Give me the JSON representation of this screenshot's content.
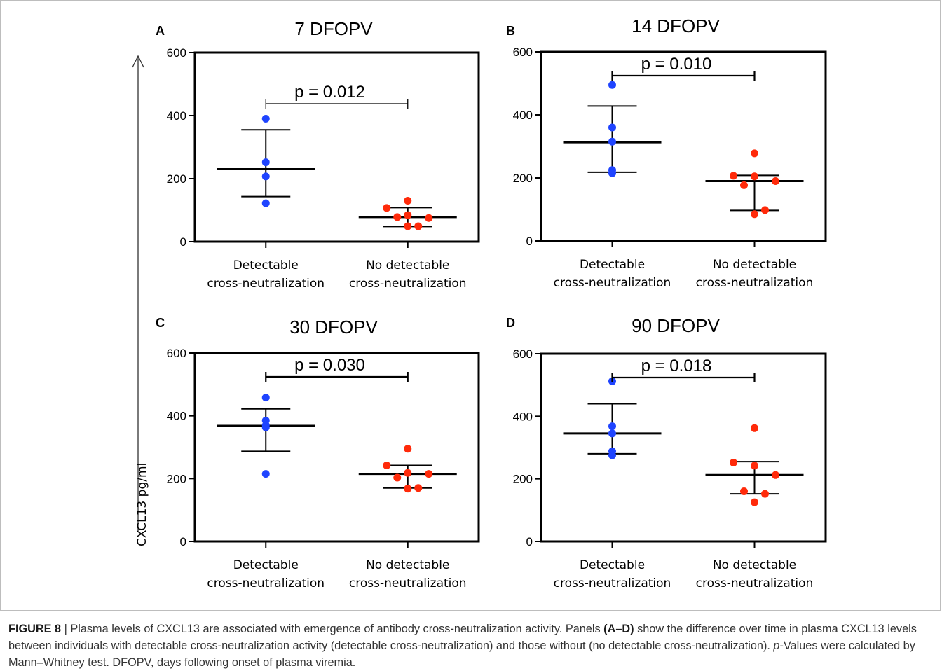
{
  "figure": {
    "y_axis_label": "CXCL13 pg/ml",
    "caption": {
      "fig_label": "FIGURE 8",
      "sep": " | ",
      "part1": "Plasma levels of CXCL13 are associated with emergence of antibody cross-neutralization activity. Panels ",
      "panels_ref": "(A–D)",
      "part2": " show the difference over time in plasma CXCL13 levels between individuals with detectable cross-neutralization activity (detectable cross-neutralization) and those without (no detectable cross-neutralization). ",
      "p_italic": "p",
      "part3": "-Values were calculated by Mann–Whitney test. DFOPV, days following onset of plasma viremia."
    }
  },
  "colors": {
    "group1": "#1f44ff",
    "group2": "#ff2a0a",
    "axis": "#000000"
  },
  "chart_data": [
    {
      "type": "scatter",
      "panel": "A",
      "title": "7 DFOPV",
      "categories": [
        "Detectable\ncross-neutralization",
        "No detectable\ncross-neutralization"
      ],
      "ylim": [
        0,
        600
      ],
      "yticks": [
        0,
        200,
        400,
        600
      ],
      "series": [
        {
          "group": "Detectable cross-neutralization",
          "points": [
            390,
            252,
            207,
            122
          ],
          "mean": 230,
          "sd_upper": 355,
          "sd_lower": 143
        },
        {
          "group": "No detectable cross-neutralization",
          "points": [
            130,
            107,
            84,
            75,
            78,
            49,
            49
          ],
          "mean": 78,
          "sd_upper": 108,
          "sd_lower": 48
        }
      ],
      "annotation": "p = 0.012"
    },
    {
      "type": "scatter",
      "panel": "B",
      "title": "14 DFOPV",
      "categories": [
        "Detectable\ncross-neutralization",
        "No detectable\ncross-neutralization"
      ],
      "ylim": [
        0,
        600
      ],
      "yticks": [
        0,
        200,
        400,
        600
      ],
      "series": [
        {
          "group": "Detectable cross-neutralization",
          "points": [
            495,
            360,
            315,
            225,
            215
          ],
          "mean": 313,
          "sd_upper": 428,
          "sd_lower": 218
        },
        {
          "group": "No detectable cross-neutralization",
          "points": [
            278,
            207,
            205,
            190,
            177,
            98,
            85
          ],
          "mean": 190,
          "sd_upper": 208,
          "sd_lower": 97
        }
      ],
      "annotation": "p = 0.010"
    },
    {
      "type": "scatter",
      "panel": "C",
      "title": "30 DFOPV",
      "categories": [
        "Detectable\ncross-neutralization",
        "No detectable\ncross-neutralization"
      ],
      "ylim": [
        0,
        600
      ],
      "yticks": [
        0,
        200,
        400,
        600
      ],
      "series": [
        {
          "group": "Detectable cross-neutralization",
          "points": [
            458,
            385,
            370,
            363,
            215
          ],
          "mean": 368,
          "sd_upper": 422,
          "sd_lower": 287
        },
        {
          "group": "No detectable cross-neutralization",
          "points": [
            295,
            242,
            218,
            215,
            203,
            170,
            168
          ],
          "mean": 215,
          "sd_upper": 242,
          "sd_lower": 170
        }
      ],
      "annotation": "p = 0.030"
    },
    {
      "type": "scatter",
      "panel": "D",
      "title": "90 DFOPV",
      "categories": [
        "Detectable\ncross-neutralization",
        "No detectable\ncross-neutralization"
      ],
      "ylim": [
        0,
        600
      ],
      "yticks": [
        0,
        200,
        400,
        600
      ],
      "series": [
        {
          "group": "Detectable cross-neutralization",
          "points": [
            512,
            368,
            345,
            288,
            275
          ],
          "mean": 345,
          "sd_upper": 440,
          "sd_lower": 280
        },
        {
          "group": "No detectable cross-neutralization",
          "points": [
            362,
            252,
            242,
            212,
            160,
            152,
            125
          ],
          "mean": 212,
          "sd_upper": 255,
          "sd_lower": 152
        }
      ],
      "annotation": "p = 0.018"
    }
  ]
}
